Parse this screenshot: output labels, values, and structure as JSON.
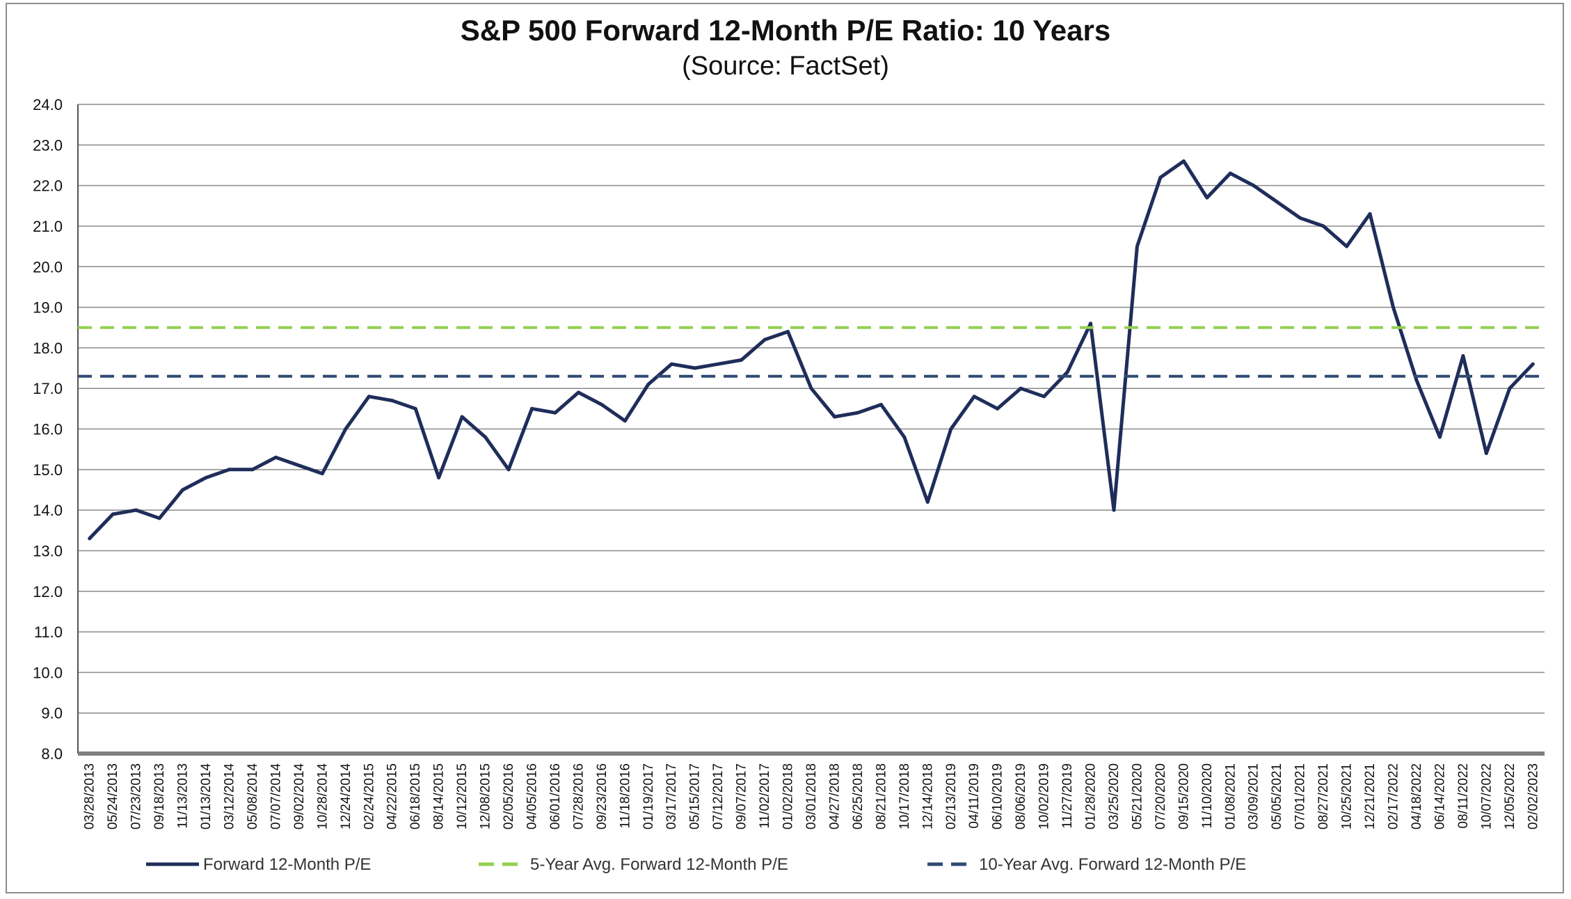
{
  "chart_data": {
    "type": "line",
    "title": "S&P 500 Forward 12-Month P/E Ratio: 10 Years",
    "subtitle": "(Source: FactSet)",
    "xlabel": "",
    "ylabel": "",
    "ylim": [
      8.0,
      24.0
    ],
    "yticks": [
      "24.0",
      "23.0",
      "22.0",
      "21.0",
      "20.0",
      "19.0",
      "18.0",
      "17.0",
      "16.0",
      "15.0",
      "14.0",
      "13.0",
      "12.0",
      "11.0",
      "10.0",
      "9.0",
      "8.0"
    ],
    "xticks": [
      "03/28/2013",
      "05/24/2013",
      "07/23/2013",
      "09/18/2013",
      "11/13/2013",
      "01/13/2014",
      "03/12/2014",
      "05/08/2014",
      "07/07/2014",
      "09/02/2014",
      "10/28/2014",
      "12/24/2014",
      "02/24/2015",
      "04/22/2015",
      "06/18/2015",
      "08/14/2015",
      "10/12/2015",
      "12/08/2015",
      "02/05/2016",
      "04/05/2016",
      "06/01/2016",
      "07/28/2016",
      "09/23/2016",
      "11/18/2016",
      "01/19/2017",
      "03/17/2017",
      "05/15/2017",
      "07/12/2017",
      "09/07/2017",
      "11/02/2017",
      "01/02/2018",
      "03/01/2018",
      "04/27/2018",
      "06/25/2018",
      "08/21/2018",
      "10/17/2018",
      "12/14/2018",
      "02/13/2019",
      "04/11/2019",
      "06/10/2019",
      "08/06/2019",
      "10/02/2019",
      "11/27/2019",
      "01/28/2020",
      "03/25/2020",
      "05/21/2020",
      "07/20/2020",
      "09/15/2020",
      "11/10/2020",
      "01/08/2021",
      "03/09/2021",
      "05/05/2021",
      "07/01/2021",
      "08/27/2021",
      "10/25/2021",
      "12/21/2021",
      "02/17/2022",
      "04/18/2022",
      "06/14/2022",
      "08/11/2022",
      "10/07/2022",
      "12/05/2022",
      "02/02/2023"
    ],
    "grid": true,
    "legend_position": "bottom",
    "series": [
      {
        "name": "Forward 12-Month P/E",
        "color": "#1f2d5a",
        "style": "solid",
        "x": [
          "03/28/2013",
          "05/24/2013",
          "07/23/2013",
          "09/18/2013",
          "11/13/2013",
          "01/13/2014",
          "03/12/2014",
          "05/08/2014",
          "07/07/2014",
          "09/02/2014",
          "10/28/2014",
          "12/24/2014",
          "02/24/2015",
          "04/22/2015",
          "06/18/2015",
          "08/14/2015",
          "10/12/2015",
          "12/08/2015",
          "02/05/2016",
          "04/05/2016",
          "06/01/2016",
          "07/28/2016",
          "09/23/2016",
          "11/18/2016",
          "01/19/2017",
          "03/17/2017",
          "05/15/2017",
          "07/12/2017",
          "09/07/2017",
          "11/02/2017",
          "01/02/2018",
          "03/01/2018",
          "04/27/2018",
          "06/25/2018",
          "08/21/2018",
          "10/17/2018",
          "12/14/2018",
          "02/13/2019",
          "04/11/2019",
          "06/10/2019",
          "08/06/2019",
          "10/02/2019",
          "11/27/2019",
          "01/28/2020",
          "03/25/2020",
          "05/21/2020",
          "07/20/2020",
          "09/15/2020",
          "11/10/2020",
          "01/08/2021",
          "03/09/2021",
          "05/05/2021",
          "07/01/2021",
          "08/27/2021",
          "10/25/2021",
          "12/21/2021",
          "02/17/2022",
          "04/18/2022",
          "06/14/2022",
          "08/11/2022",
          "10/07/2022",
          "12/05/2022",
          "02/02/2023"
        ],
        "values": [
          13.3,
          13.9,
          14.0,
          13.8,
          14.5,
          14.8,
          15.0,
          15.0,
          15.3,
          15.1,
          14.9,
          16.0,
          16.8,
          16.7,
          16.5,
          14.8,
          16.3,
          15.8,
          15.0,
          16.5,
          16.4,
          16.9,
          16.6,
          16.2,
          17.1,
          17.6,
          17.5,
          17.6,
          17.7,
          18.2,
          18.4,
          17.0,
          16.3,
          16.4,
          16.6,
          15.8,
          14.2,
          16.0,
          16.8,
          16.5,
          17.0,
          16.8,
          17.4,
          18.6,
          14.0,
          20.5,
          22.2,
          22.6,
          21.7,
          22.3,
          22.0,
          21.6,
          21.2,
          21.0,
          20.5,
          21.3,
          19.0,
          17.2,
          15.8,
          17.8,
          15.4,
          17.0,
          17.6
        ]
      },
      {
        "name": "5-Year Avg. Forward 12-Month P/E",
        "color": "#92d050",
        "style": "dashed",
        "value": 18.5
      },
      {
        "name": "10-Year Avg. Forward 12-Month P/E",
        "color": "#2e4a73",
        "style": "dashed",
        "value": 17.3
      }
    ]
  }
}
